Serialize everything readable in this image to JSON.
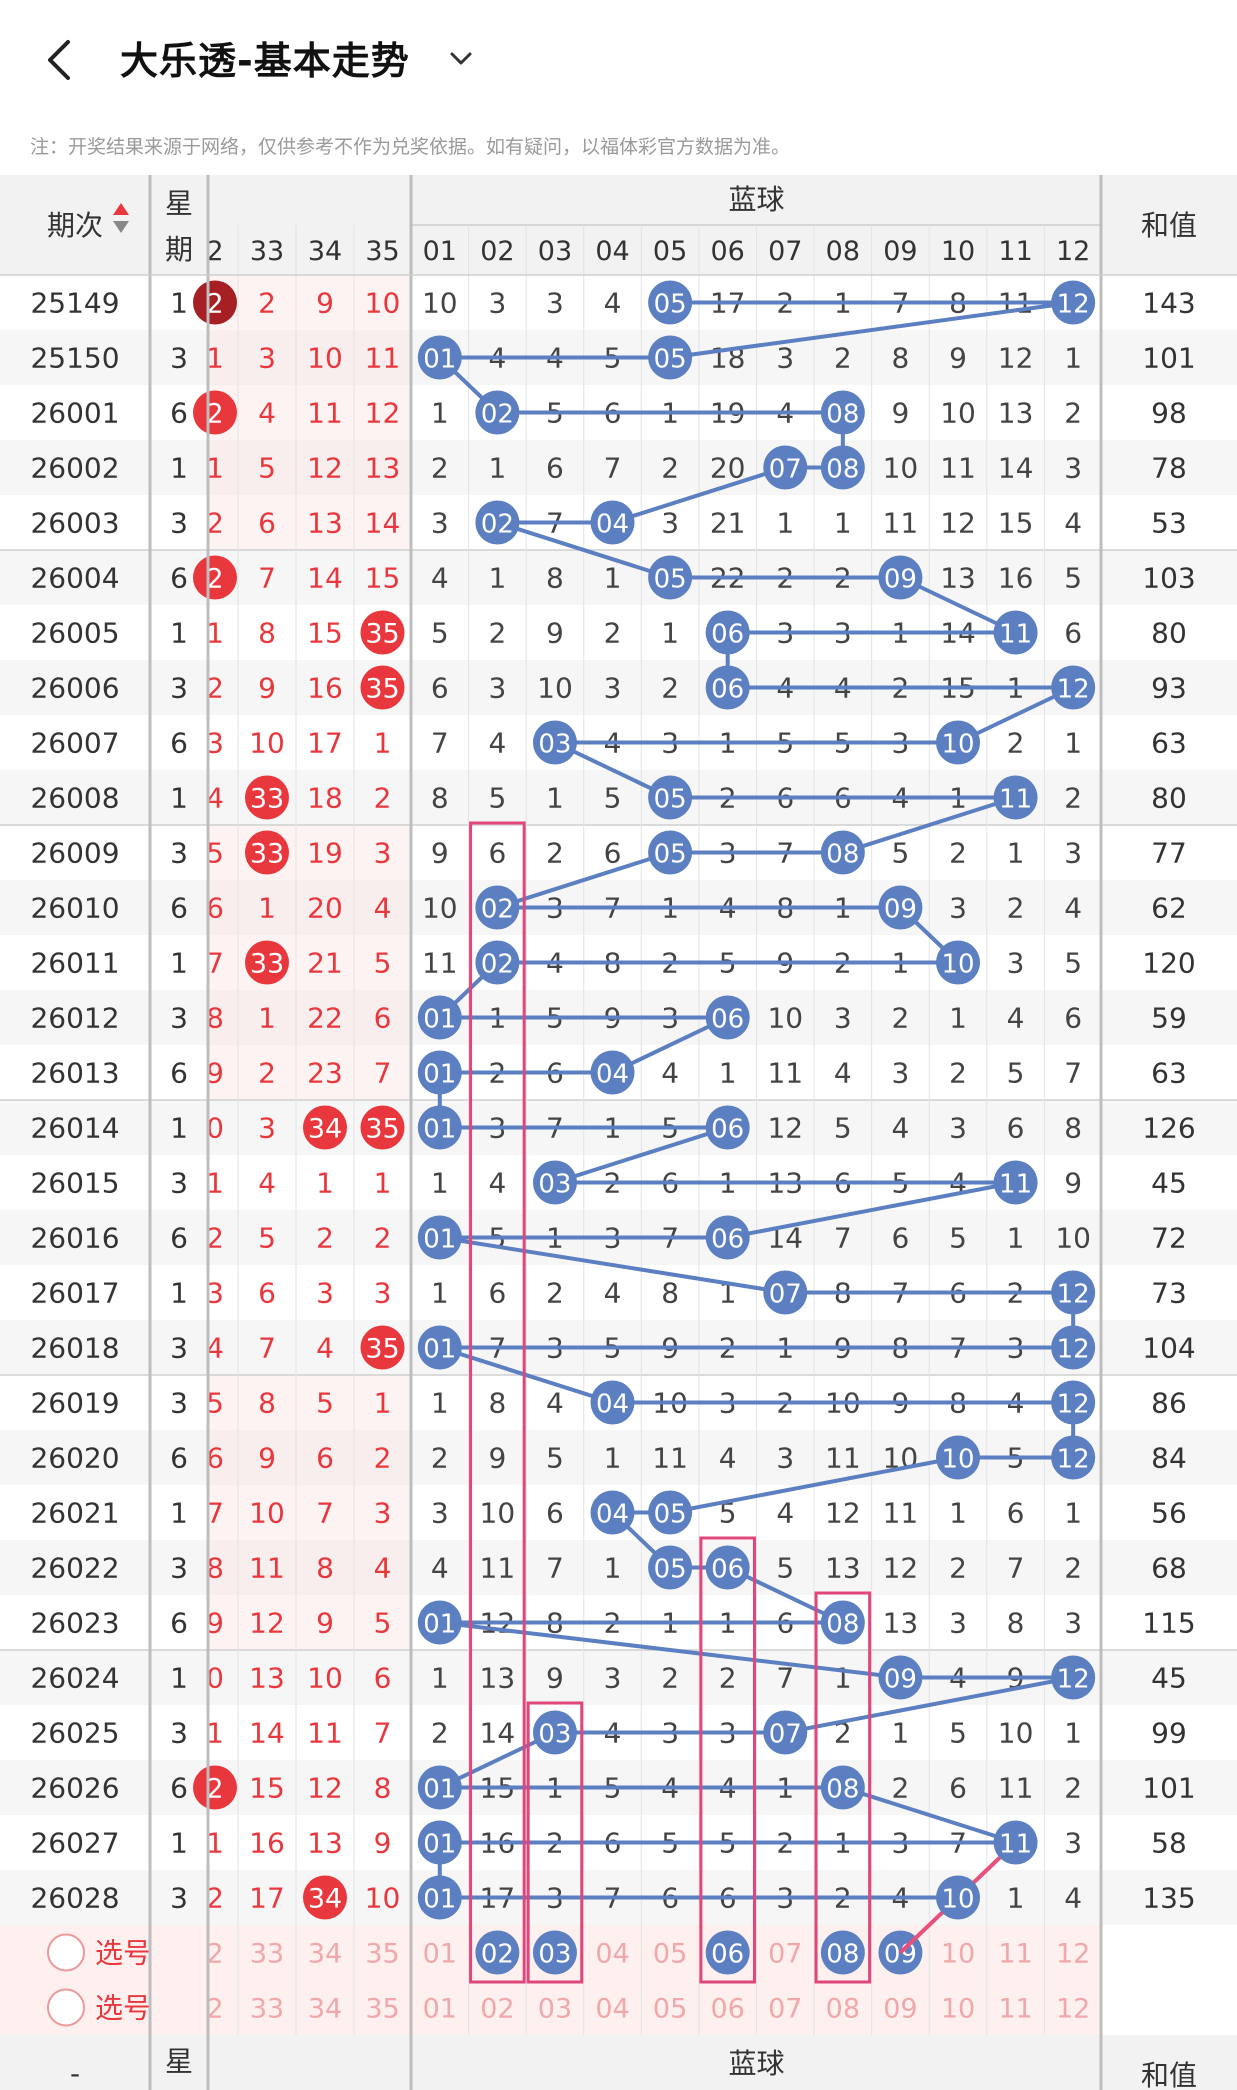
{
  "header": {
    "back_icon": "chevron-left-icon",
    "title": "大乐透-基本走势",
    "dropdown_icon": "chevron-down-icon"
  },
  "notice": "注：开奖结果来源于网络，仅供参考不作为兑奖依据。如有疑问，以福体彩官方数据为准。",
  "table": {
    "col_period": "期次",
    "col_weekday": [
      "星",
      "期"
    ],
    "blue_group": "蓝球",
    "col_sum": "和值",
    "red_headers": [
      "2",
      "33",
      "34",
      "35"
    ],
    "blue_headers": [
      "01",
      "02",
      "03",
      "04",
      "05",
      "06",
      "07",
      "08",
      "09",
      "10",
      "11",
      "12"
    ],
    "rows": [
      {
        "period": "25149",
        "wk": "1",
        "red": [
          {
            "t": "2",
            "hit": true,
            "dark": true
          },
          {
            "t": "2"
          },
          {
            "t": "9"
          },
          {
            "t": "10"
          }
        ],
        "blue": [
          "10",
          "3",
          "3",
          "4",
          "05",
          "17",
          "2",
          "1",
          "7",
          "8",
          "11",
          "12"
        ],
        "hits": [
          5,
          12
        ],
        "sum": "143"
      },
      {
        "period": "25150",
        "wk": "3",
        "red": [
          {
            "t": "1"
          },
          {
            "t": "3"
          },
          {
            "t": "10"
          },
          {
            "t": "11"
          }
        ],
        "blue": [
          "01",
          "4",
          "4",
          "5",
          "05",
          "18",
          "3",
          "2",
          "8",
          "9",
          "12",
          "1"
        ],
        "hits": [
          1,
          5
        ],
        "sum": "101"
      },
      {
        "period": "26001",
        "wk": "6",
        "red": [
          {
            "t": "2",
            "hit": true
          },
          {
            "t": "4"
          },
          {
            "t": "11"
          },
          {
            "t": "12"
          }
        ],
        "blue": [
          "1",
          "02",
          "5",
          "6",
          "1",
          "19",
          "4",
          "08",
          "9",
          "10",
          "13",
          "2"
        ],
        "hits": [
          2,
          8
        ],
        "sum": "98"
      },
      {
        "period": "26002",
        "wk": "1",
        "red": [
          {
            "t": "1"
          },
          {
            "t": "5"
          },
          {
            "t": "12"
          },
          {
            "t": "13"
          }
        ],
        "blue": [
          "2",
          "1",
          "6",
          "7",
          "2",
          "20",
          "07",
          "08",
          "10",
          "11",
          "14",
          "3"
        ],
        "hits": [
          7,
          8
        ],
        "sum": "78"
      },
      {
        "period": "26003",
        "wk": "3",
        "red": [
          {
            "t": "2"
          },
          {
            "t": "6"
          },
          {
            "t": "13"
          },
          {
            "t": "14"
          }
        ],
        "blue": [
          "3",
          "02",
          "7",
          "04",
          "3",
          "21",
          "1",
          "1",
          "11",
          "12",
          "15",
          "4"
        ],
        "hits": [
          2,
          4
        ],
        "sum": "53"
      },
      {
        "period": "26004",
        "wk": "6",
        "red": [
          {
            "t": "2",
            "hit": true
          },
          {
            "t": "7"
          },
          {
            "t": "14"
          },
          {
            "t": "15"
          }
        ],
        "blue": [
          "4",
          "1",
          "8",
          "1",
          "05",
          "22",
          "2",
          "2",
          "09",
          "13",
          "16",
          "5"
        ],
        "hits": [
          5,
          9
        ],
        "sum": "103"
      },
      {
        "period": "26005",
        "wk": "1",
        "red": [
          {
            "t": "1"
          },
          {
            "t": "8"
          },
          {
            "t": "15"
          },
          {
            "t": "35",
            "hit": true
          }
        ],
        "blue": [
          "5",
          "2",
          "9",
          "2",
          "1",
          "06",
          "3",
          "3",
          "1",
          "14",
          "11",
          "6"
        ],
        "hits": [
          6,
          11
        ],
        "sum": "80"
      },
      {
        "period": "26006",
        "wk": "3",
        "red": [
          {
            "t": "2"
          },
          {
            "t": "9"
          },
          {
            "t": "16"
          },
          {
            "t": "35",
            "hit": true
          }
        ],
        "blue": [
          "6",
          "3",
          "10",
          "3",
          "2",
          "06",
          "4",
          "4",
          "2",
          "15",
          "1",
          "12"
        ],
        "hits": [
          6,
          12
        ],
        "sum": "93"
      },
      {
        "period": "26007",
        "wk": "6",
        "red": [
          {
            "t": "3"
          },
          {
            "t": "10"
          },
          {
            "t": "17"
          },
          {
            "t": "1"
          }
        ],
        "blue": [
          "7",
          "4",
          "03",
          "4",
          "3",
          "1",
          "5",
          "5",
          "3",
          "10",
          "2",
          "1"
        ],
        "hits": [
          3,
          10
        ],
        "sum": "63"
      },
      {
        "period": "26008",
        "wk": "1",
        "red": [
          {
            "t": "4"
          },
          {
            "t": "33",
            "hit": true
          },
          {
            "t": "18"
          },
          {
            "t": "2"
          }
        ],
        "blue": [
          "8",
          "5",
          "1",
          "5",
          "05",
          "2",
          "6",
          "6",
          "4",
          "1",
          "11",
          "2"
        ],
        "hits": [
          5,
          11
        ],
        "sum": "80"
      },
      {
        "period": "26009",
        "wk": "3",
        "red": [
          {
            "t": "5"
          },
          {
            "t": "33",
            "hit": true
          },
          {
            "t": "19"
          },
          {
            "t": "3"
          }
        ],
        "blue": [
          "9",
          "6",
          "2",
          "6",
          "05",
          "3",
          "7",
          "08",
          "5",
          "2",
          "1",
          "3"
        ],
        "hits": [
          5,
          8
        ],
        "sum": "77"
      },
      {
        "period": "26010",
        "wk": "6",
        "red": [
          {
            "t": "6"
          },
          {
            "t": "1"
          },
          {
            "t": "20"
          },
          {
            "t": "4"
          }
        ],
        "blue": [
          "10",
          "02",
          "3",
          "7",
          "1",
          "4",
          "8",
          "1",
          "09",
          "3",
          "2",
          "4"
        ],
        "hits": [
          2,
          9
        ],
        "sum": "62"
      },
      {
        "period": "26011",
        "wk": "1",
        "red": [
          {
            "t": "7"
          },
          {
            "t": "33",
            "hit": true
          },
          {
            "t": "21"
          },
          {
            "t": "5"
          }
        ],
        "blue": [
          "11",
          "02",
          "4",
          "8",
          "2",
          "5",
          "9",
          "2",
          "1",
          "10",
          "3",
          "5"
        ],
        "hits": [
          2,
          10
        ],
        "sum": "120"
      },
      {
        "period": "26012",
        "wk": "3",
        "red": [
          {
            "t": "8"
          },
          {
            "t": "1"
          },
          {
            "t": "22"
          },
          {
            "t": "6"
          }
        ],
        "blue": [
          "01",
          "1",
          "5",
          "9",
          "3",
          "06",
          "10",
          "3",
          "2",
          "1",
          "4",
          "6"
        ],
        "hits": [
          1,
          6
        ],
        "sum": "59"
      },
      {
        "period": "26013",
        "wk": "6",
        "red": [
          {
            "t": "9"
          },
          {
            "t": "2"
          },
          {
            "t": "23"
          },
          {
            "t": "7"
          }
        ],
        "blue": [
          "01",
          "2",
          "6",
          "04",
          "4",
          "1",
          "11",
          "4",
          "3",
          "2",
          "5",
          "7"
        ],
        "hits": [
          1,
          4
        ],
        "sum": "63"
      },
      {
        "period": "26014",
        "wk": "1",
        "red": [
          {
            "t": "0"
          },
          {
            "t": "3"
          },
          {
            "t": "34",
            "hit": true
          },
          {
            "t": "35",
            "hit": true
          }
        ],
        "blue": [
          "01",
          "3",
          "7",
          "1",
          "5",
          "06",
          "12",
          "5",
          "4",
          "3",
          "6",
          "8"
        ],
        "hits": [
          1,
          6
        ],
        "sum": "126"
      },
      {
        "period": "26015",
        "wk": "3",
        "red": [
          {
            "t": "1"
          },
          {
            "t": "4"
          },
          {
            "t": "1"
          },
          {
            "t": "1"
          }
        ],
        "blue": [
          "1",
          "4",
          "03",
          "2",
          "6",
          "1",
          "13",
          "6",
          "5",
          "4",
          "11",
          "9"
        ],
        "hits": [
          3,
          11
        ],
        "sum": "45"
      },
      {
        "period": "26016",
        "wk": "6",
        "red": [
          {
            "t": "2"
          },
          {
            "t": "5"
          },
          {
            "t": "2"
          },
          {
            "t": "2"
          }
        ],
        "blue": [
          "01",
          "5",
          "1",
          "3",
          "7",
          "06",
          "14",
          "7",
          "6",
          "5",
          "1",
          "10"
        ],
        "hits": [
          1,
          6
        ],
        "sum": "72"
      },
      {
        "period": "26017",
        "wk": "1",
        "red": [
          {
            "t": "3"
          },
          {
            "t": "6"
          },
          {
            "t": "3"
          },
          {
            "t": "3"
          }
        ],
        "blue": [
          "1",
          "6",
          "2",
          "4",
          "8",
          "1",
          "07",
          "8",
          "7",
          "6",
          "2",
          "12"
        ],
        "hits": [
          7,
          12
        ],
        "sum": "73"
      },
      {
        "period": "26018",
        "wk": "3",
        "red": [
          {
            "t": "4"
          },
          {
            "t": "7"
          },
          {
            "t": "4"
          },
          {
            "t": "35",
            "hit": true
          }
        ],
        "blue": [
          "01",
          "7",
          "3",
          "5",
          "9",
          "2",
          "1",
          "9",
          "8",
          "7",
          "3",
          "12"
        ],
        "hits": [
          1,
          12
        ],
        "sum": "104"
      },
      {
        "period": "26019",
        "wk": "3",
        "red": [
          {
            "t": "5"
          },
          {
            "t": "8"
          },
          {
            "t": "5"
          },
          {
            "t": "1"
          }
        ],
        "blue": [
          "1",
          "8",
          "4",
          "04",
          "10",
          "3",
          "2",
          "10",
          "9",
          "8",
          "4",
          "12"
        ],
        "hits": [
          4,
          12
        ],
        "sum": "86"
      },
      {
        "period": "26020",
        "wk": "6",
        "red": [
          {
            "t": "6"
          },
          {
            "t": "9"
          },
          {
            "t": "6"
          },
          {
            "t": "2"
          }
        ],
        "blue": [
          "2",
          "9",
          "5",
          "1",
          "11",
          "4",
          "3",
          "11",
          "10",
          "10",
          "5",
          "12"
        ],
        "hits": [
          10,
          12
        ],
        "sum": "84"
      },
      {
        "period": "26021",
        "wk": "1",
        "red": [
          {
            "t": "7"
          },
          {
            "t": "10"
          },
          {
            "t": "7"
          },
          {
            "t": "3"
          }
        ],
        "blue": [
          "3",
          "10",
          "6",
          "04",
          "05",
          "5",
          "4",
          "12",
          "11",
          "1",
          "6",
          "1"
        ],
        "hits": [
          4,
          5
        ],
        "sum": "56"
      },
      {
        "period": "26022",
        "wk": "3",
        "red": [
          {
            "t": "8"
          },
          {
            "t": "11"
          },
          {
            "t": "8"
          },
          {
            "t": "4"
          }
        ],
        "blue": [
          "4",
          "11",
          "7",
          "1",
          "05",
          "06",
          "5",
          "13",
          "12",
          "2",
          "7",
          "2"
        ],
        "hits": [
          5,
          6
        ],
        "sum": "68"
      },
      {
        "period": "26023",
        "wk": "6",
        "red": [
          {
            "t": "9"
          },
          {
            "t": "12"
          },
          {
            "t": "9"
          },
          {
            "t": "5"
          }
        ],
        "blue": [
          "01",
          "12",
          "8",
          "2",
          "1",
          "1",
          "6",
          "08",
          "13",
          "3",
          "8",
          "3"
        ],
        "hits": [
          1,
          8
        ],
        "sum": "115"
      },
      {
        "period": "26024",
        "wk": "1",
        "red": [
          {
            "t": "0"
          },
          {
            "t": "13"
          },
          {
            "t": "10"
          },
          {
            "t": "6"
          }
        ],
        "blue": [
          "1",
          "13",
          "9",
          "3",
          "2",
          "2",
          "7",
          "1",
          "09",
          "4",
          "9",
          "12"
        ],
        "hits": [
          9,
          12
        ],
        "sum": "45"
      },
      {
        "period": "26025",
        "wk": "3",
        "red": [
          {
            "t": "1"
          },
          {
            "t": "14"
          },
          {
            "t": "11"
          },
          {
            "t": "7"
          }
        ],
        "blue": [
          "2",
          "14",
          "03",
          "4",
          "3",
          "3",
          "07",
          "2",
          "1",
          "5",
          "10",
          "1"
        ],
        "hits": [
          3,
          7
        ],
        "sum": "99"
      },
      {
        "period": "26026",
        "wk": "6",
        "red": [
          {
            "t": "2",
            "hit": true
          },
          {
            "t": "15"
          },
          {
            "t": "12"
          },
          {
            "t": "8"
          }
        ],
        "blue": [
          "01",
          "15",
          "1",
          "5",
          "4",
          "4",
          "1",
          "08",
          "2",
          "6",
          "11",
          "2"
        ],
        "hits": [
          1,
          8
        ],
        "sum": "101"
      },
      {
        "period": "26027",
        "wk": "1",
        "red": [
          {
            "t": "1"
          },
          {
            "t": "16"
          },
          {
            "t": "13"
          },
          {
            "t": "9"
          }
        ],
        "blue": [
          "01",
          "16",
          "2",
          "6",
          "5",
          "5",
          "2",
          "1",
          "3",
          "7",
          "11",
          "3"
        ],
        "hits": [
          1,
          11
        ],
        "sum": "58"
      },
      {
        "period": "26028",
        "wk": "3",
        "red": [
          {
            "t": "2"
          },
          {
            "t": "17"
          },
          {
            "t": "34",
            "hit": true
          },
          {
            "t": "10"
          }
        ],
        "blue": [
          "01",
          "17",
          "3",
          "7",
          "6",
          "6",
          "3",
          "2",
          "4",
          "10",
          "1",
          "4"
        ],
        "hits": [
          1,
          10
        ],
        "sum": "135"
      }
    ],
    "select_rows": [
      {
        "label": "选号",
        "picked": [
          2,
          3,
          6,
          8,
          9
        ]
      },
      {
        "label": "选号",
        "picked": []
      }
    ],
    "footer": {
      "period_dash": "-",
      "weekday": "星",
      "blue_group": "蓝球",
      "sum": "和值"
    }
  },
  "colors": {
    "red": "#e8383d",
    "blue_ball": "#5b7fc1",
    "blue_line": "#5b7fc1",
    "pink_line": "#e84f7a",
    "highlight_box": "#e0467c",
    "header_bg": "#f2f2f2",
    "select_bg": "#fdf0ef"
  }
}
